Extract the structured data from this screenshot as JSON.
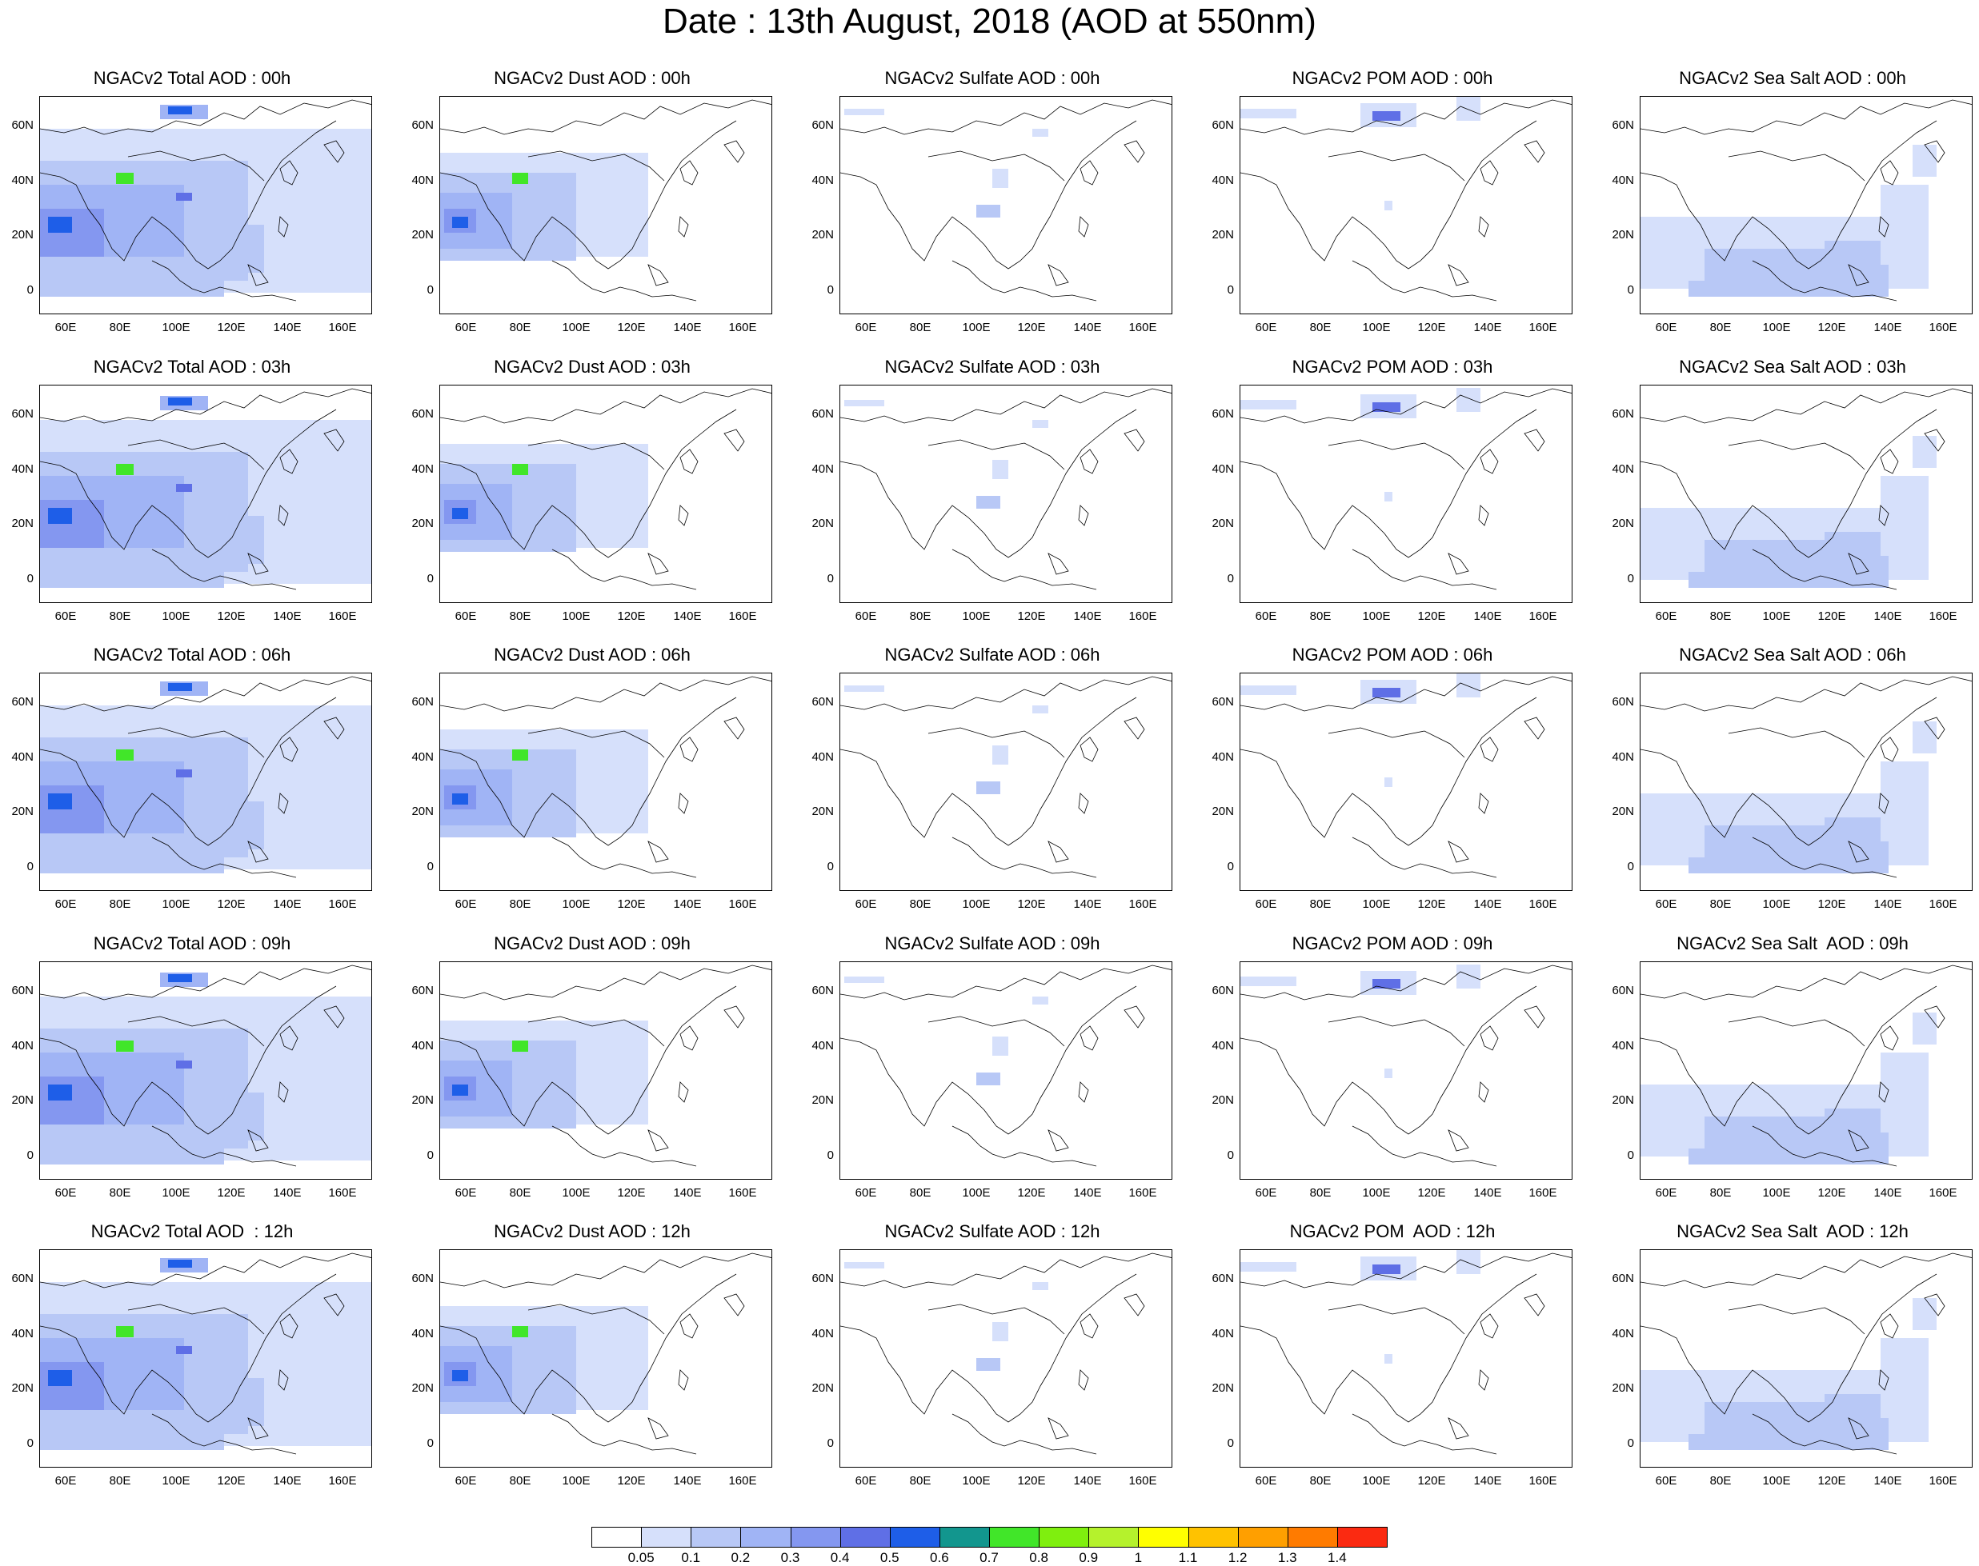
{
  "title": "Date : 13th August, 2018 (AOD at 550nm)",
  "panels": [
    [
      "NGACv2 Total AOD : 00h",
      "NGACv2 Dust AOD : 00h",
      "NGACv2 Sulfate AOD : 00h",
      "NGACv2 POM AOD : 00h",
      "NGACv2 Sea Salt AOD : 00h"
    ],
    [
      "NGACv2 Total AOD : 03h",
      "NGACv2 Dust AOD : 03h",
      "NGACv2 Sulfate AOD : 03h",
      "NGACv2 POM AOD : 03h",
      "NGACv2 Sea Salt AOD : 03h"
    ],
    [
      "NGACv2 Total AOD : 06h",
      "NGACv2 Dust AOD : 06h",
      "NGACv2 Sulfate AOD : 06h",
      "NGACv2 POM AOD : 06h",
      "NGACv2 Sea Salt AOD : 06h"
    ],
    [
      "NGACv2 Total AOD : 09h",
      "NGACv2 Dust AOD : 09h",
      "NGACv2 Sulfate AOD : 09h",
      "NGACv2 POM AOD : 09h",
      "NGACv2 Sea Salt  AOD : 09h"
    ],
    [
      "NGACv2 Total AOD  : 12h",
      "NGACv2 Dust AOD : 12h",
      "NGACv2 Sulfate AOD : 12h",
      "NGACv2 POM  AOD : 12h",
      "NGACv2 Sea Salt  AOD : 12h"
    ]
  ],
  "lat_labels": [
    "60N",
    "40N",
    "20N",
    "0"
  ],
  "lon_labels": [
    "60E",
    "80E",
    "100E",
    "120E",
    "140E",
    "160E"
  ],
  "colorbar": {
    "colors": [
      "#ffffff",
      "#d6e0fb",
      "#b8c8f6",
      "#a0b4f5",
      "#8497f0",
      "#5f6fe6",
      "#1e5ee8",
      "#12968e",
      "#41e629",
      "#7fef0e",
      "#b5f22c",
      "#ffff00",
      "#ffc200",
      "#ff9f00",
      "#ff7b00",
      "#fb2a11"
    ],
    "labels": [
      "0.05",
      "0.1",
      "0.2",
      "0.3",
      "0.4",
      "0.5",
      "0.6",
      "0.7",
      "0.8",
      "0.9",
      "1",
      "1.1",
      "1.2",
      "1.3",
      "1.4"
    ]
  }
}
